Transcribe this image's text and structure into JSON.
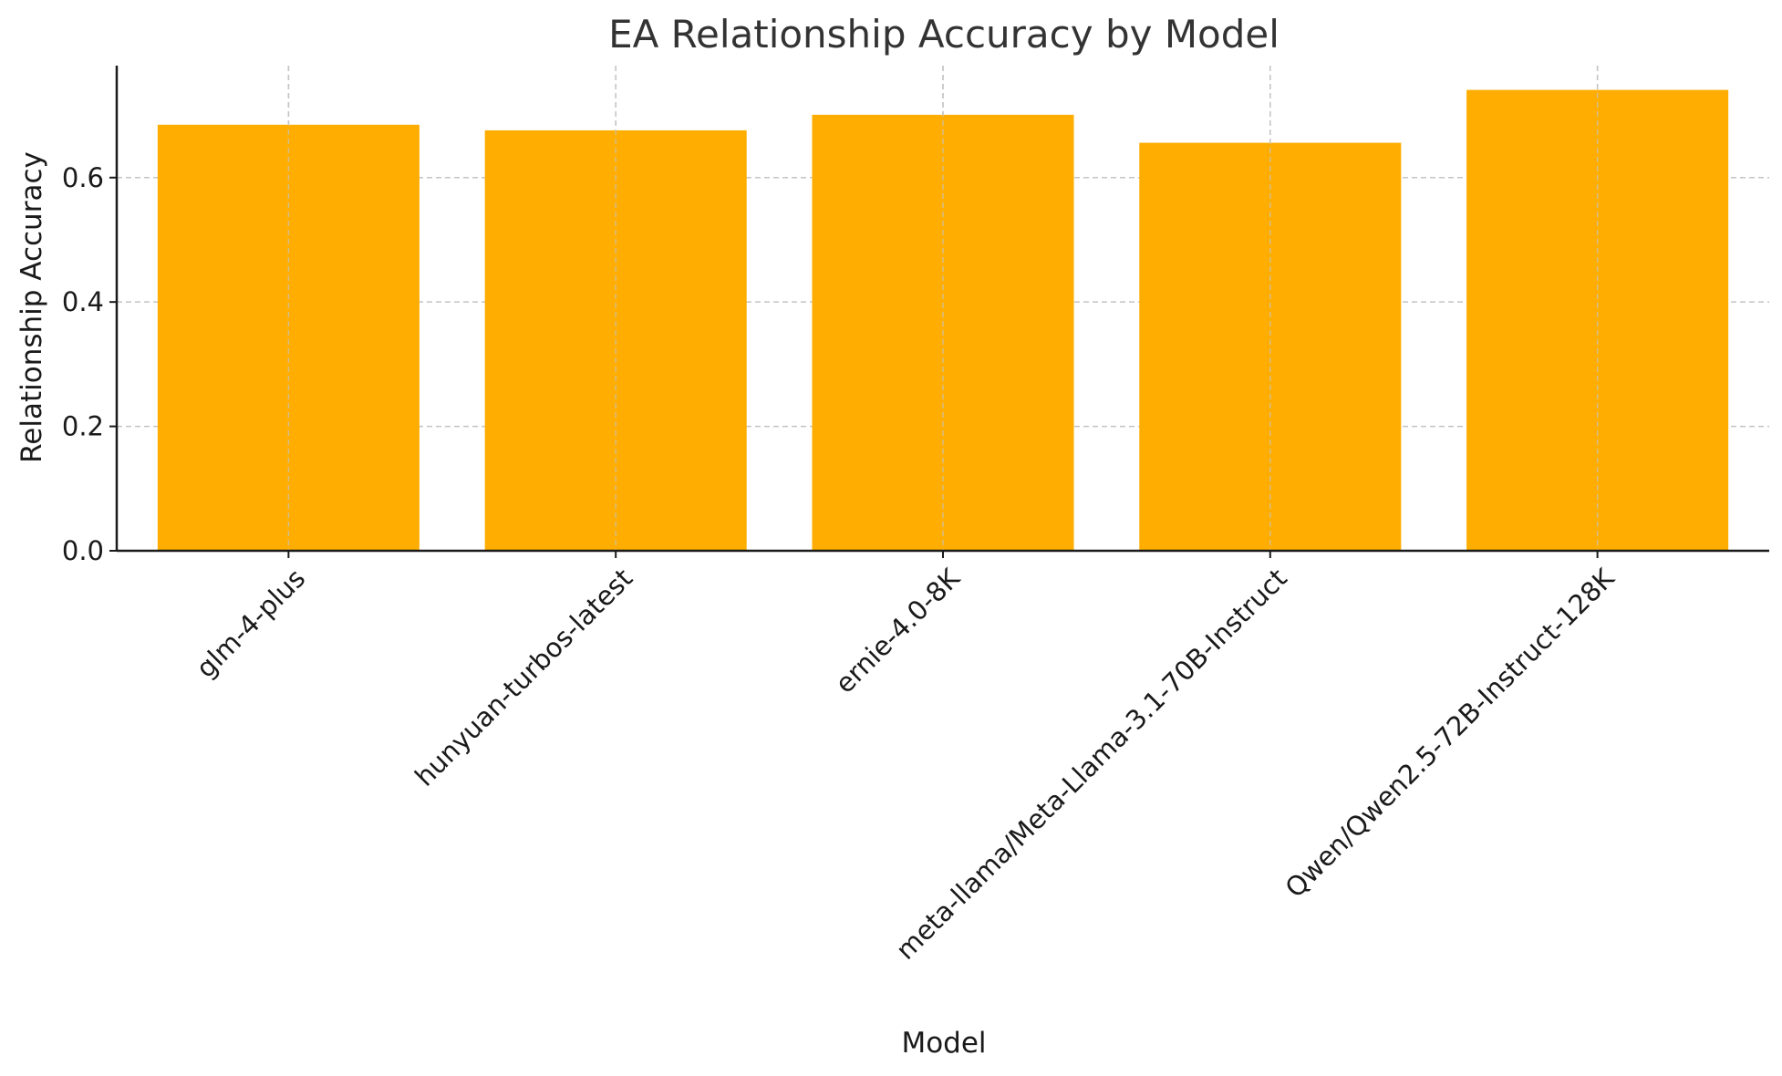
{
  "chart_data": {
    "type": "bar",
    "title": "EA Relationship Accuracy by Model",
    "xlabel": "Model",
    "ylabel": "Relationship Accuracy",
    "categories": [
      "glm-4-plus",
      "hunyuan-turbos-latest",
      "ernie-4.0-8K",
      "meta-llama/Meta-Llama-3.1-70B-Instruct",
      "Qwen/Qwen2.5-72B-Instruct-128K"
    ],
    "values": [
      0.685,
      0.676,
      0.701,
      0.656,
      0.741
    ],
    "ylim": [
      0,
      0.78
    ],
    "yticks": [
      "0.0",
      "0.2",
      "0.4",
      "0.6"
    ],
    "ytick_values": [
      0,
      0.2,
      0.4,
      0.6
    ],
    "grid": true,
    "bar_color": "#ffad00"
  }
}
